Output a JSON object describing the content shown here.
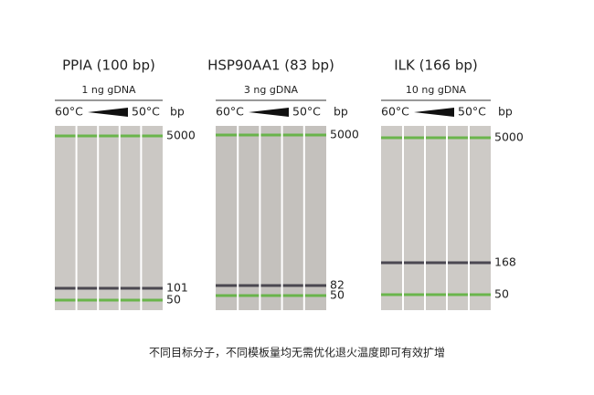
{
  "panels": [
    {
      "title": "PPIA (100 bp)",
      "template": "1 ng gDNA",
      "temp_high": "60°C",
      "temp_low": "50°C",
      "unit": "bp",
      "markers": [
        "5000",
        "101",
        "50"
      ]
    },
    {
      "title": "HSP90AA1 (83 bp)",
      "template": "3 ng gDNA",
      "temp_high": "60°C",
      "temp_low": "50°C",
      "unit": "bp",
      "markers": [
        "5000",
        "82",
        "50"
      ]
    },
    {
      "title": "ILK (166 bp)",
      "template": "10 ng gDNA",
      "temp_high": "60°C",
      "temp_low": "50°C",
      "unit": "bp",
      "markers": [
        "5000",
        "168",
        "50"
      ]
    }
  ],
  "caption": "不同目标分子，不同模板量均无需优化退火温度即可有效扩增"
}
